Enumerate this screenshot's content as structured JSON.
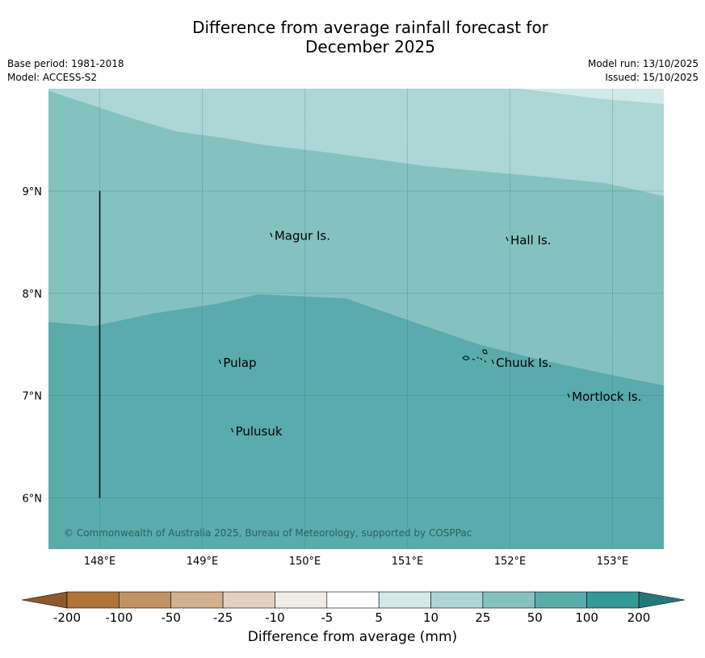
{
  "title": {
    "line1": "Difference from average rainfall forecast for",
    "line2": "December 2025"
  },
  "meta": {
    "base_period": "Base period: 1981-2018",
    "model": "Model: ACCESS-S2",
    "model_run": "Model run: 13/10/2025",
    "issued": "Issued: 15/10/2025"
  },
  "map": {
    "lon_range": [
      147.5,
      153.5
    ],
    "lat_range": [
      5.5,
      10.0
    ],
    "lon_ticks": [
      {
        "value": 148,
        "label": "148°E"
      },
      {
        "value": 149,
        "label": "149°E"
      },
      {
        "value": 150,
        "label": "150°E"
      },
      {
        "value": 151,
        "label": "151°E"
      },
      {
        "value": 152,
        "label": "152°E"
      },
      {
        "value": 153,
        "label": "153°E"
      }
    ],
    "lat_ticks": [
      {
        "value": 9,
        "label": "9°N"
      },
      {
        "value": 8,
        "label": "8°N"
      },
      {
        "value": 7,
        "label": "7°N"
      },
      {
        "value": 6,
        "label": "6°N"
      }
    ],
    "colors": {
      "10_to_25": "#add6d6",
      "25_to_50": "#84c2c0",
      "50_to_100": "#5aabab",
      "5_to_10": "#d2e9e9",
      "grid": "#2f6f6f"
    },
    "contours": {
      "boundary_10_25": [
        [
          147.5,
          9.98
        ],
        [
          147.98,
          9.82
        ],
        [
          148.35,
          9.7
        ],
        [
          148.75,
          9.58
        ],
        [
          149.2,
          9.52
        ],
        [
          149.6,
          9.45
        ],
        [
          150.2,
          9.38
        ],
        [
          151.2,
          9.24
        ],
        [
          152.2,
          9.15
        ],
        [
          152.92,
          9.08
        ],
        [
          153.5,
          8.95
        ]
      ],
      "boundary_50_100": [
        [
          147.5,
          7.72
        ],
        [
          147.95,
          7.68
        ],
        [
          148.5,
          7.8
        ],
        [
          149.15,
          7.9
        ],
        [
          149.55,
          7.99
        ],
        [
          150.4,
          7.95
        ],
        [
          151.0,
          7.74
        ],
        [
          151.7,
          7.5
        ],
        [
          152.3,
          7.35
        ],
        [
          152.95,
          7.21
        ],
        [
          153.5,
          7.1
        ]
      ],
      "boundary_5_10": [
        [
          152.1,
          10.0
        ],
        [
          152.9,
          9.9
        ],
        [
          153.5,
          9.85
        ]
      ]
    },
    "dateline_marker": {
      "lon": 148.0,
      "lat_from": 6.0,
      "lat_to": 9.0
    },
    "places": [
      {
        "name": "Magur Is.",
        "lon": 149.68,
        "lat": 8.56
      },
      {
        "name": "Hall Is.",
        "lon": 151.98,
        "lat": 8.52
      },
      {
        "name": "Pulap",
        "lon": 149.18,
        "lat": 7.32
      },
      {
        "name": "Chuuk Is.",
        "lon": 151.84,
        "lat": 7.32
      },
      {
        "name": "Mortlock Is.",
        "lon": 152.58,
        "lat": 6.99
      },
      {
        "name": "Pulusuk",
        "lon": 149.3,
        "lat": 6.65
      }
    ],
    "copyright": "© Commonwealth of Australia 2025, Bureau of Meteorology, supported by COSPPac"
  },
  "colorbar": {
    "ticks": [
      "-200",
      "-100",
      "-50",
      "-25",
      "-10",
      "-5",
      "5",
      "10",
      "25",
      "50",
      "100",
      "200"
    ],
    "colors": [
      "#b07538",
      "#c19265",
      "#d3b08f",
      "#e3d1bf",
      "#f0ede7",
      "#ffffff",
      "#d2e9e9",
      "#add6d6",
      "#84c2c0",
      "#5aabab",
      "#35999a"
    ],
    "low_extend_color": "#8c5a2b",
    "high_extend_color": "#25787a",
    "label": "Difference from average (mm)"
  }
}
